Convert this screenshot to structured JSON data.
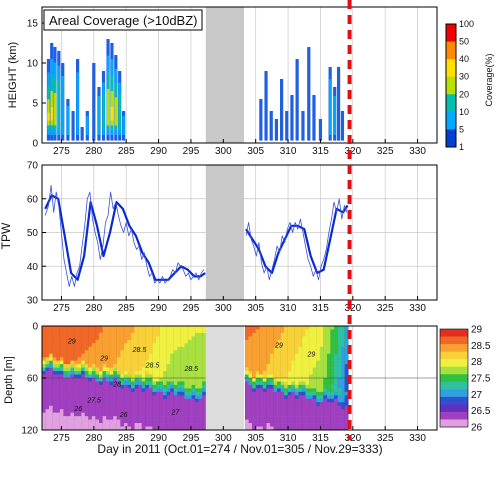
{
  "chart_data": [
    {
      "type": "heatmap",
      "title": "Areal Coverage (>10dBZ)",
      "ylabel": "HEIGHT (km)",
      "xlim": [
        272,
        333
      ],
      "ylim": [
        0,
        17
      ],
      "xticks": [
        "275",
        "280",
        "285",
        "290",
        "295",
        "300",
        "305",
        "310",
        "315",
        "320",
        "325",
        "330"
      ],
      "yticks": [
        "0",
        "5",
        "10",
        "15"
      ],
      "colorbar": {
        "label": "Coverage(%)",
        "ticks": [
          "100",
          "50",
          "40",
          "30",
          "20",
          "10",
          "5",
          "1"
        ],
        "colors": [
          "#f00000",
          "#ff8a00",
          "#ffe000",
          "#b8e000",
          "#00c0b0",
          "#00aaff",
          "#0040d0"
        ]
      },
      "gap": [
        297.3,
        303.2
      ],
      "columns": [
        {
          "x": 273.0,
          "top": 10.5,
          "level": 5
        },
        {
          "x": 273.5,
          "top": 12.5,
          "level": 4
        },
        {
          "x": 274.0,
          "top": 12.0,
          "level": 3
        },
        {
          "x": 274.6,
          "top": 11.5,
          "level": 2
        },
        {
          "x": 275.2,
          "top": 10.0,
          "level": 1
        },
        {
          "x": 276.0,
          "top": 5.5,
          "level": 1
        },
        {
          "x": 276.8,
          "top": 4.0,
          "level": 0
        },
        {
          "x": 277.5,
          "top": 10.5,
          "level": 1
        },
        {
          "x": 278.2,
          "top": 2.0,
          "level": 0
        },
        {
          "x": 279.0,
          "top": 4.0,
          "level": 1
        },
        {
          "x": 280.0,
          "top": 10.0,
          "level": 0
        },
        {
          "x": 280.8,
          "top": 7.0,
          "level": 1
        },
        {
          "x": 281.5,
          "top": 9.0,
          "level": 2
        },
        {
          "x": 282.2,
          "top": 13.0,
          "level": 3
        },
        {
          "x": 282.8,
          "top": 12.5,
          "level": 4
        },
        {
          "x": 283.4,
          "top": 11.0,
          "level": 3
        },
        {
          "x": 284.0,
          "top": 9.0,
          "level": 2
        },
        {
          "x": 284.6,
          "top": 4.0,
          "level": 1
        },
        {
          "x": 305.8,
          "top": 5.5,
          "level": 0
        },
        {
          "x": 306.6,
          "top": 9.0,
          "level": 0
        },
        {
          "x": 307.4,
          "top": 4.0,
          "level": 0
        },
        {
          "x": 308.2,
          "top": 3.0,
          "level": 0
        },
        {
          "x": 309.0,
          "top": 8.0,
          "level": 0
        },
        {
          "x": 309.8,
          "top": 4.0,
          "level": 0
        },
        {
          "x": 310.6,
          "top": 6.0,
          "level": 0
        },
        {
          "x": 311.4,
          "top": 10.5,
          "level": 0
        },
        {
          "x": 312.3,
          "top": 4.0,
          "level": 0
        },
        {
          "x": 313.2,
          "top": 12.0,
          "level": 0
        },
        {
          "x": 314.0,
          "top": 6.0,
          "level": 0
        },
        {
          "x": 315.0,
          "top": 3.0,
          "level": 0
        },
        {
          "x": 316.5,
          "top": 9.5,
          "level": 1
        },
        {
          "x": 317.2,
          "top": 7.0,
          "level": 1
        },
        {
          "x": 317.8,
          "top": 9.5,
          "level": 0
        },
        {
          "x": 318.4,
          "top": 4.0,
          "level": 0
        }
      ]
    },
    {
      "type": "line",
      "ylabel": "TPW",
      "xlim": [
        272,
        333
      ],
      "ylim": [
        30,
        70
      ],
      "xticks": [
        "275",
        "280",
        "285",
        "290",
        "295",
        "300",
        "305",
        "310",
        "315",
        "320",
        "325",
        "330"
      ],
      "yticks": [
        "30",
        "40",
        "50",
        "60",
        "70"
      ],
      "gap": [
        297.3,
        303.2
      ],
      "series": [
        {
          "style": "smoothed",
          "values": [
            [
              272.5,
              57
            ],
            [
              273.5,
              61
            ],
            [
              274.5,
              60
            ],
            [
              275.5,
              49
            ],
            [
              276.5,
              38
            ],
            [
              277.5,
              36
            ],
            [
              278.5,
              43
            ],
            [
              279.5,
              59
            ],
            [
              280.5,
              52
            ],
            [
              281.5,
              43
            ],
            [
              282.5,
              50
            ],
            [
              283.5,
              59
            ],
            [
              284.5,
              57
            ],
            [
              285.5,
              52
            ],
            [
              286.5,
              49
            ],
            [
              287.5,
              44
            ],
            [
              288.5,
              41
            ],
            [
              289.5,
              36
            ],
            [
              290.5,
              36
            ],
            [
              291.5,
              36
            ],
            [
              292.5,
              38
            ],
            [
              293.5,
              40
            ],
            [
              294.5,
              39
            ],
            [
              295.5,
              37
            ],
            [
              296.5,
              37
            ],
            [
              297.2,
              38
            ],
            [
              303.5,
              51
            ],
            [
              304.5,
              48
            ],
            [
              305.5,
              45
            ],
            [
              306.5,
              40
            ],
            [
              307.5,
              38
            ],
            [
              308.5,
              44
            ],
            [
              309.5,
              48
            ],
            [
              310.5,
              52
            ],
            [
              311.5,
              52
            ],
            [
              312.5,
              51
            ],
            [
              313.5,
              43
            ],
            [
              314.5,
              38
            ],
            [
              315.5,
              39
            ],
            [
              316.5,
              48
            ],
            [
              317.5,
              57
            ],
            [
              318.5,
              56
            ],
            [
              319.2,
              58
            ]
          ]
        },
        {
          "style": "raw",
          "values": [
            [
              272.5,
              55
            ],
            [
              273.0,
              58
            ],
            [
              273.4,
              64
            ],
            [
              273.8,
              56
            ],
            [
              274.2,
              62
            ],
            [
              274.6,
              58
            ],
            [
              275.0,
              50
            ],
            [
              275.4,
              42
            ],
            [
              275.8,
              38
            ],
            [
              276.2,
              34
            ],
            [
              276.6,
              37
            ],
            [
              277.0,
              34
            ],
            [
              277.4,
              38
            ],
            [
              277.8,
              40
            ],
            [
              278.2,
              46
            ],
            [
              278.6,
              52
            ],
            [
              279.0,
              60
            ],
            [
              279.4,
              62
            ],
            [
              279.8,
              54
            ],
            [
              280.2,
              50
            ],
            [
              280.6,
              47
            ],
            [
              281.0,
              42
            ],
            [
              281.4,
              46
            ],
            [
              281.8,
              53
            ],
            [
              282.2,
              55
            ],
            [
              282.6,
              62
            ],
            [
              283.0,
              57
            ],
            [
              283.4,
              59
            ],
            [
              283.8,
              55
            ],
            [
              284.2,
              52
            ],
            [
              284.6,
              50
            ],
            [
              285.0,
              53
            ],
            [
              285.4,
              49
            ],
            [
              285.8,
              51
            ],
            [
              286.2,
              47
            ],
            [
              286.6,
              45
            ],
            [
              287.0,
              46
            ],
            [
              287.4,
              42
            ],
            [
              287.8,
              44
            ],
            [
              288.2,
              40
            ],
            [
              288.6,
              37
            ],
            [
              289.0,
              38
            ],
            [
              289.4,
              35
            ],
            [
              289.8,
              36
            ],
            [
              290.2,
              35
            ],
            [
              290.6,
              37
            ],
            [
              291.0,
              35
            ],
            [
              291.4,
              36
            ],
            [
              291.8,
              37
            ],
            [
              292.2,
              39
            ],
            [
              292.6,
              38
            ],
            [
              293.0,
              41
            ],
            [
              293.4,
              40
            ],
            [
              293.8,
              39
            ],
            [
              294.2,
              37
            ],
            [
              294.6,
              38
            ],
            [
              295.0,
              36
            ],
            [
              295.4,
              37
            ],
            [
              295.8,
              38
            ],
            [
              296.2,
              36
            ],
            [
              296.6,
              38
            ],
            [
              297.0,
              39
            ],
            [
              303.5,
              49
            ],
            [
              303.9,
              53
            ],
            [
              304.3,
              48
            ],
            [
              304.7,
              46
            ],
            [
              305.1,
              43
            ],
            [
              305.5,
              47
            ],
            [
              305.9,
              41
            ],
            [
              306.3,
              38
            ],
            [
              306.7,
              40
            ],
            [
              307.1,
              36
            ],
            [
              307.5,
              39
            ],
            [
              307.9,
              42
            ],
            [
              308.3,
              46
            ],
            [
              308.7,
              44
            ],
            [
              309.1,
              49
            ],
            [
              309.5,
              47
            ],
            [
              309.9,
              51
            ],
            [
              310.3,
              53
            ],
            [
              310.7,
              50
            ],
            [
              311.1,
              53
            ],
            [
              311.5,
              51
            ],
            [
              311.9,
              54
            ],
            [
              312.3,
              50
            ],
            [
              312.7,
              46
            ],
            [
              313.1,
              42
            ],
            [
              313.5,
              40
            ],
            [
              313.9,
              37
            ],
            [
              314.3,
              39
            ],
            [
              314.7,
              36
            ],
            [
              315.1,
              40
            ],
            [
              315.5,
              42
            ],
            [
              315.9,
              45
            ],
            [
              316.3,
              50
            ],
            [
              316.7,
              54
            ],
            [
              317.1,
              59
            ],
            [
              317.5,
              56
            ],
            [
              317.9,
              60
            ],
            [
              318.3,
              54
            ],
            [
              318.7,
              58
            ],
            [
              319.1,
              56
            ]
          ]
        }
      ]
    },
    {
      "type": "heatmap",
      "xlabel": "Day in 2011 (Oct.01=274 / Nov.01=305 / Nov.29=333)",
      "ylabel": "Depth [m]",
      "xlim": [
        272,
        333
      ],
      "ylim": [
        120,
        0
      ],
      "xticks": [
        "275",
        "280",
        "285",
        "290",
        "295",
        "300",
        "305",
        "310",
        "315",
        "320",
        "325",
        "330"
      ],
      "yticks": [
        "0",
        "60",
        "120"
      ],
      "gap": [
        297.3,
        303.2
      ],
      "data_end": 319.2,
      "colorbar": {
        "ticks": [
          "29",
          "28.5",
          "28",
          "27.5",
          "27",
          "26.5",
          "26"
        ],
        "colors": [
          "#e03020",
          "#f06828",
          "#f8a030",
          "#f8d038",
          "#f0f040",
          "#a8e040",
          "#30c040",
          "#30c0a0",
          "#30a0e0",
          "#3050d0",
          "#6030c0",
          "#a040c0",
          "#e0a0e0"
        ]
      },
      "contour_labels": [
        "26",
        "26",
        "27",
        "27.5",
        "28",
        "28.5",
        "28.5",
        "28.5",
        "29",
        "29",
        "29",
        "29"
      ],
      "profiles": [
        {
          "x": 272.0,
          "warm": 28.8,
          "mld": 50
        },
        {
          "x": 276.0,
          "warm": 28.8,
          "mld": 55
        },
        {
          "x": 280.0,
          "warm": 28.7,
          "mld": 60
        },
        {
          "x": 284.0,
          "warm": 28.5,
          "mld": 65
        },
        {
          "x": 288.0,
          "warm": 28.3,
          "mld": 72
        },
        {
          "x": 292.0,
          "warm": 28.0,
          "mld": 78
        },
        {
          "x": 296.0,
          "warm": 27.9,
          "mld": 82
        },
        {
          "x": 297.3,
          "warm": 27.9,
          "mld": 83
        },
        {
          "x": 303.2,
          "warm": 28.7,
          "mld": 65
        },
        {
          "x": 306.0,
          "warm": 28.6,
          "mld": 70
        },
        {
          "x": 309.0,
          "warm": 28.4,
          "mld": 75
        },
        {
          "x": 312.0,
          "warm": 28.2,
          "mld": 80
        },
        {
          "x": 315.0,
          "warm": 28.0,
          "mld": 85
        },
        {
          "x": 317.0,
          "warm": 27.6,
          "mld": 88
        },
        {
          "x": 318.5,
          "warm": 27.2,
          "mld": 90
        },
        {
          "x": 319.2,
          "warm": 27.0,
          "mld": 92
        }
      ]
    }
  ],
  "marker": {
    "x": 319.5,
    "color": "#e01010"
  }
}
